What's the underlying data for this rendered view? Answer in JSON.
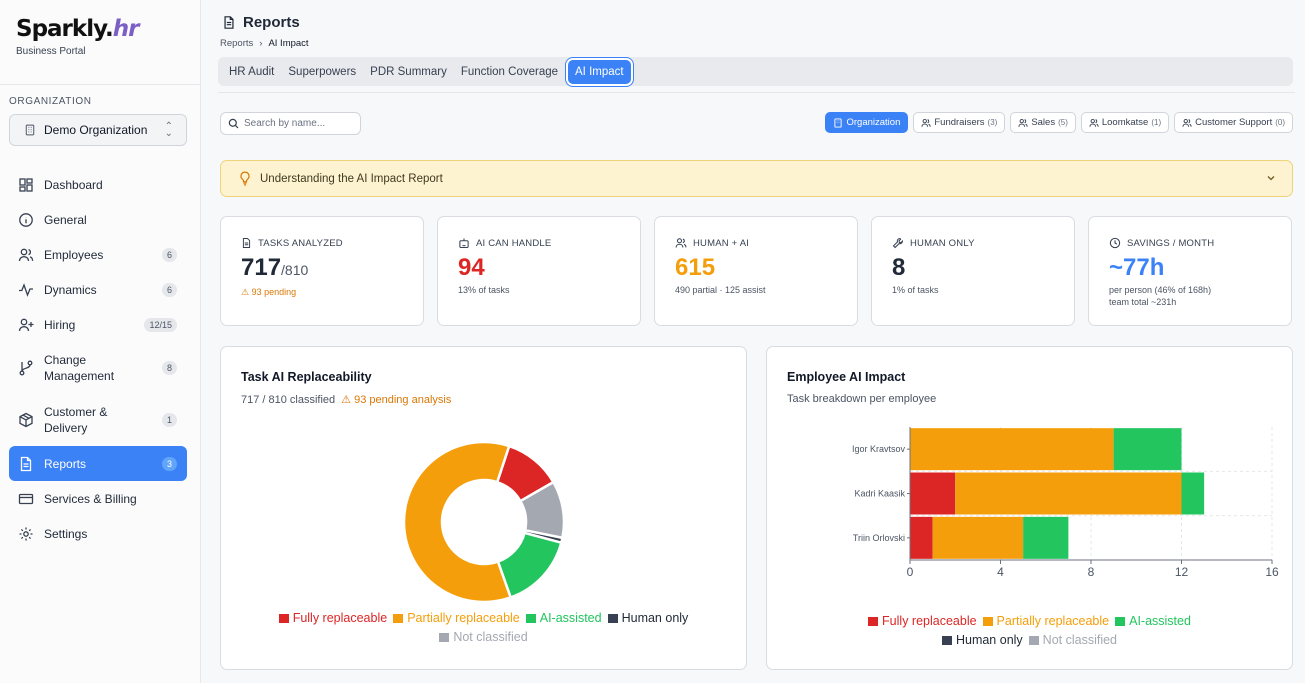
{
  "brand": {
    "logo_main": "Sparkly.",
    "logo_accent": "hr",
    "subtitle": "Business Portal"
  },
  "sidebar": {
    "org_label": "ORGANIZATION",
    "org_name": "Demo Organization",
    "items": [
      {
        "label": "Dashboard",
        "icon": "dashboard-icon",
        "badge": ""
      },
      {
        "label": "General",
        "icon": "info-icon",
        "badge": ""
      },
      {
        "label": "Employees",
        "icon": "users-icon",
        "badge": "6"
      },
      {
        "label": "Dynamics",
        "icon": "activity-icon",
        "badge": "6"
      },
      {
        "label": "Hiring",
        "icon": "user-plus-icon",
        "badge": "12/15"
      },
      {
        "label": "Change Management",
        "icon": "git-branch-icon",
        "badge": "8"
      },
      {
        "label": "Customer & Delivery",
        "icon": "package-icon",
        "badge": "1"
      },
      {
        "label": "Reports",
        "icon": "file-icon",
        "badge": "3"
      },
      {
        "label": "Services & Billing",
        "icon": "card-icon",
        "badge": ""
      },
      {
        "label": "Settings",
        "icon": "gear-icon",
        "badge": ""
      }
    ]
  },
  "header": {
    "title": "Reports",
    "breadcrumb_root": "Reports",
    "breadcrumb_current": "AI Impact",
    "tabs": [
      "HR Audit",
      "Superpowers",
      "PDR Summary",
      "Function Coverage",
      "AI Impact"
    ],
    "active_tab": "AI Impact"
  },
  "search": {
    "placeholder": "Search by name..."
  },
  "filters": [
    {
      "label": "Organization",
      "count": ""
    },
    {
      "label": "Fundraisers",
      "count": "(3)"
    },
    {
      "label": "Sales",
      "count": "(5)"
    },
    {
      "label": "Loomkatse",
      "count": "(1)"
    },
    {
      "label": "Customer Support",
      "count": "(0)"
    }
  ],
  "info_banner": {
    "text": "Understanding the AI Impact Report"
  },
  "stats": {
    "tasks": {
      "label": "TASKS ANALYZED",
      "value": "717",
      "denominator": "/810",
      "sub": "93 pending"
    },
    "ai": {
      "label": "AI CAN HANDLE",
      "value": "94",
      "sub": "13% of tasks"
    },
    "human_ai": {
      "label": "HUMAN + AI",
      "value": "615",
      "sub": "490 partial · 125 assist"
    },
    "human": {
      "label": "HUMAN ONLY",
      "value": "8",
      "sub": "1% of tasks"
    },
    "savings": {
      "label": "SAVINGS / MONTH",
      "value": "~77h",
      "sub": "per person (46% of 168h)",
      "sub2": "team total ~231h"
    }
  },
  "colors": {
    "fully": "#dc2626",
    "partially": "#f59e0b",
    "assisted": "#22c55e",
    "human": "#374151",
    "unclassified": "#a3a8b1",
    "accent": "#3b82f6"
  },
  "replaceability_card": {
    "title": "Task AI Replaceability",
    "classified": "717 / 810 classified",
    "pending": "93 pending analysis"
  },
  "impact_card": {
    "title": "Employee AI Impact",
    "subtitle": "Task breakdown per employee"
  },
  "chart_data": [
    {
      "type": "pie",
      "title": "Task AI Replaceability",
      "labels": [
        "Fully replaceable",
        "Partially replaceable",
        "AI-assisted",
        "Human only",
        "Not classified"
      ],
      "values": [
        94,
        490,
        125,
        8,
        93
      ],
      "legend": "bottom"
    },
    {
      "type": "bar",
      "orientation": "horizontal",
      "stacked": true,
      "title": "Employee AI Impact",
      "categories": [
        "Igor Kravtsov",
        "Kadri Kaasik",
        "Triin Orlovski"
      ],
      "series": [
        {
          "name": "Fully replaceable",
          "values": [
            0,
            2,
            1
          ]
        },
        {
          "name": "Partially replaceable",
          "values": [
            9,
            10,
            4
          ]
        },
        {
          "name": "AI-assisted",
          "values": [
            3,
            1,
            2
          ]
        },
        {
          "name": "Human only",
          "values": [
            0,
            0,
            0
          ]
        },
        {
          "name": "Not classified",
          "values": [
            0,
            0,
            0
          ]
        }
      ],
      "xlim": [
        0,
        16
      ],
      "xticks": [
        "0",
        "4",
        "8",
        "12",
        "16"
      ],
      "grid": true,
      "legend": "bottom"
    }
  ]
}
